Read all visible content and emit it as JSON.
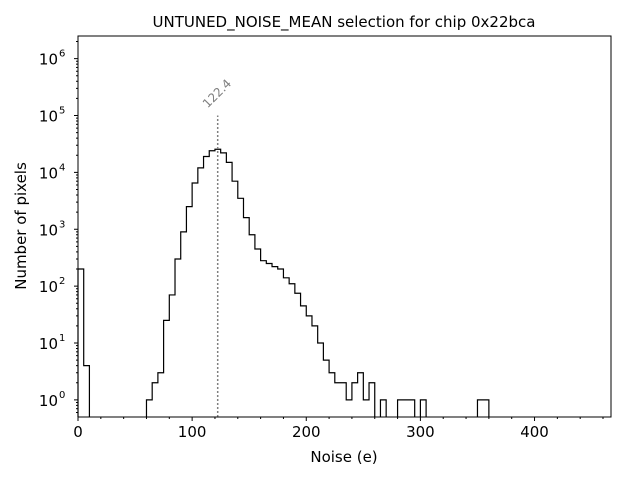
{
  "chart_data": {
    "type": "histogram",
    "title": "UNTUNED_NOISE_MEAN selection for chip 0x22bca",
    "xlabel": "Noise (e)",
    "ylabel": "Number of pixels",
    "xlim": [
      0,
      467
    ],
    "ylim": [
      0.5,
      2500000
    ],
    "yscale": "log",
    "x_ticks": [
      0,
      100,
      200,
      300,
      400
    ],
    "y_ticks": [
      {
        "value": 1,
        "label": "10",
        "exp": "0"
      },
      {
        "value": 10,
        "label": "10",
        "exp": "1"
      },
      {
        "value": 100,
        "label": "10",
        "exp": "2"
      },
      {
        "value": 1000,
        "label": "10",
        "exp": "3"
      },
      {
        "value": 10000,
        "label": "10",
        "exp": "4"
      },
      {
        "value": 100000,
        "label": "10",
        "exp": "5"
      },
      {
        "value": 1000000,
        "label": "10",
        "exp": "6"
      }
    ],
    "bin_width": 5,
    "bins": [
      {
        "x0": 0,
        "count": 200
      },
      {
        "x0": 5,
        "count": 4
      },
      {
        "x0": 60,
        "count": 1
      },
      {
        "x0": 65,
        "count": 2
      },
      {
        "x0": 70,
        "count": 3
      },
      {
        "x0": 75,
        "count": 25
      },
      {
        "x0": 80,
        "count": 70
      },
      {
        "x0": 85,
        "count": 300
      },
      {
        "x0": 90,
        "count": 900
      },
      {
        "x0": 95,
        "count": 2500
      },
      {
        "x0": 100,
        "count": 6500
      },
      {
        "x0": 105,
        "count": 12000
      },
      {
        "x0": 110,
        "count": 19000
      },
      {
        "x0": 115,
        "count": 24000
      },
      {
        "x0": 120,
        "count": 25500
      },
      {
        "x0": 125,
        "count": 22000
      },
      {
        "x0": 130,
        "count": 15000
      },
      {
        "x0": 135,
        "count": 7000
      },
      {
        "x0": 140,
        "count": 3500
      },
      {
        "x0": 145,
        "count": 1600
      },
      {
        "x0": 150,
        "count": 800
      },
      {
        "x0": 155,
        "count": 450
      },
      {
        "x0": 160,
        "count": 280
      },
      {
        "x0": 165,
        "count": 250
      },
      {
        "x0": 170,
        "count": 220
      },
      {
        "x0": 175,
        "count": 200
      },
      {
        "x0": 180,
        "count": 140
      },
      {
        "x0": 185,
        "count": 110
      },
      {
        "x0": 190,
        "count": 75
      },
      {
        "x0": 195,
        "count": 45
      },
      {
        "x0": 200,
        "count": 30
      },
      {
        "x0": 205,
        "count": 20
      },
      {
        "x0": 210,
        "count": 10
      },
      {
        "x0": 215,
        "count": 5
      },
      {
        "x0": 220,
        "count": 3
      },
      {
        "x0": 225,
        "count": 2
      },
      {
        "x0": 230,
        "count": 2
      },
      {
        "x0": 235,
        "count": 1
      },
      {
        "x0": 240,
        "count": 2
      },
      {
        "x0": 245,
        "count": 3
      },
      {
        "x0": 250,
        "count": 1
      },
      {
        "x0": 255,
        "count": 2
      },
      {
        "x0": 265,
        "count": 1
      },
      {
        "x0": 280,
        "count": 1
      },
      {
        "x0": 285,
        "count": 1
      },
      {
        "x0": 290,
        "count": 1
      },
      {
        "x0": 300,
        "count": 1
      },
      {
        "x0": 350,
        "count": 1
      },
      {
        "x0": 355,
        "count": 1
      }
    ],
    "mean_line": {
      "x": 122.4,
      "label": "122.4",
      "y_top": 100000,
      "color": "#808080"
    },
    "colors": {
      "step": "#000000",
      "axes": "#000000",
      "mean": "#808080"
    }
  }
}
